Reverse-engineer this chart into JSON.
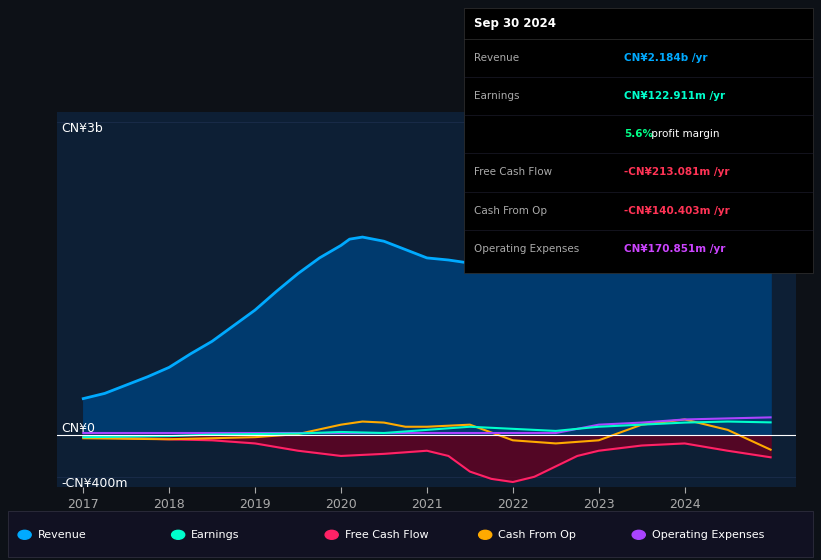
{
  "bg_color": "#0d1117",
  "plot_bg_color": "#0d1f35",
  "ylabel_top": "CN¥3b",
  "ylabel_zero": "CN¥0",
  "ylabel_neg": "-CN¥400m",
  "ylim": [
    -500000000,
    3100000000
  ],
  "xlim": [
    2016.7,
    2025.3
  ],
  "xticks": [
    2017,
    2018,
    2019,
    2020,
    2021,
    2022,
    2023,
    2024
  ],
  "grid_color": "#1e3050",
  "zero_line_color": "#ffffff",
  "series": {
    "revenue": {
      "color": "#00aaff",
      "fill_color": "#003a6e",
      "label": "Revenue",
      "x": [
        2017.0,
        2017.25,
        2017.5,
        2017.75,
        2018.0,
        2018.25,
        2018.5,
        2018.75,
        2019.0,
        2019.25,
        2019.5,
        2019.75,
        2020.0,
        2020.1,
        2020.25,
        2020.5,
        2020.75,
        2021.0,
        2021.25,
        2021.5,
        2021.75,
        2022.0,
        2022.25,
        2022.5,
        2022.75,
        2023.0,
        2023.25,
        2023.5,
        2023.75,
        2024.0,
        2024.25,
        2024.5,
        2024.75,
        2025.0
      ],
      "y": [
        350000000,
        400000000,
        480000000,
        560000000,
        650000000,
        780000000,
        900000000,
        1050000000,
        1200000000,
        1380000000,
        1550000000,
        1700000000,
        1820000000,
        1880000000,
        1900000000,
        1860000000,
        1780000000,
        1700000000,
        1680000000,
        1650000000,
        1680000000,
        1700000000,
        1750000000,
        1850000000,
        1950000000,
        2100000000,
        2400000000,
        2700000000,
        2750000000,
        2850000000,
        2780000000,
        2700000000,
        2600000000,
        2184000000
      ]
    },
    "earnings": {
      "color": "#00ffcc",
      "label": "Earnings",
      "x": [
        2017.0,
        2017.5,
        2018.0,
        2018.5,
        2019.0,
        2019.5,
        2020.0,
        2020.5,
        2021.0,
        2021.5,
        2022.0,
        2022.5,
        2023.0,
        2023.5,
        2024.0,
        2024.5,
        2025.0
      ],
      "y": [
        -20000000,
        -15000000,
        -10000000,
        5000000,
        10000000,
        15000000,
        30000000,
        20000000,
        50000000,
        80000000,
        60000000,
        40000000,
        80000000,
        100000000,
        120000000,
        130000000,
        122000000
      ]
    },
    "free_cash_flow": {
      "color": "#ff2266",
      "fill_color": "#660022",
      "label": "Free Cash Flow",
      "x": [
        2017.0,
        2017.5,
        2018.0,
        2018.5,
        2019.0,
        2019.5,
        2020.0,
        2020.5,
        2021.0,
        2021.25,
        2021.5,
        2021.75,
        2022.0,
        2022.25,
        2022.5,
        2022.75,
        2023.0,
        2023.5,
        2024.0,
        2024.5,
        2025.0
      ],
      "y": [
        -20000000,
        -30000000,
        -40000000,
        -50000000,
        -80000000,
        -150000000,
        -200000000,
        -180000000,
        -150000000,
        -200000000,
        -350000000,
        -420000000,
        -450000000,
        -400000000,
        -300000000,
        -200000000,
        -150000000,
        -100000000,
        -80000000,
        -150000000,
        -213000000
      ]
    },
    "cash_from_op": {
      "color": "#ffaa00",
      "label": "Cash From Op",
      "x": [
        2017.0,
        2017.5,
        2018.0,
        2018.5,
        2019.0,
        2019.5,
        2020.0,
        2020.25,
        2020.5,
        2020.75,
        2021.0,
        2021.5,
        2022.0,
        2022.5,
        2023.0,
        2023.5,
        2024.0,
        2024.5,
        2025.0
      ],
      "y": [
        -30000000,
        -35000000,
        -40000000,
        -30000000,
        -20000000,
        10000000,
        100000000,
        130000000,
        120000000,
        80000000,
        80000000,
        100000000,
        -50000000,
        -80000000,
        -50000000,
        100000000,
        150000000,
        50000000,
        -140000000
      ]
    },
    "operating_expenses": {
      "color": "#aa44ff",
      "label": "Operating Expenses",
      "x": [
        2017.0,
        2017.5,
        2018.0,
        2018.5,
        2019.0,
        2019.5,
        2020.0,
        2020.5,
        2021.0,
        2021.5,
        2022.0,
        2022.5,
        2023.0,
        2023.5,
        2024.0,
        2024.5,
        2025.0
      ],
      "y": [
        20000000,
        20000000,
        20000000,
        20000000,
        20000000,
        20000000,
        20000000,
        20000000,
        20000000,
        20000000,
        20000000,
        20000000,
        100000000,
        120000000,
        150000000,
        160000000,
        170000000
      ]
    }
  },
  "info_box": {
    "title": "Sep 30 2024",
    "rows": [
      {
        "label": "Revenue",
        "value": "CN¥2.184b /yr",
        "vc": "#00aaff",
        "extra": null
      },
      {
        "label": "Earnings",
        "value": "CN¥122.911m /yr",
        "vc": "#00ffcc",
        "extra": null
      },
      {
        "label": "",
        "value": "5.6%",
        "vc": "#00ff88",
        "extra": " profit margin",
        "ec": "#ffffff"
      },
      {
        "label": "Free Cash Flow",
        "value": "-CN¥213.081m /yr",
        "vc": "#ff3355",
        "extra": null
      },
      {
        "label": "Cash From Op",
        "value": "-CN¥140.403m /yr",
        "vc": "#ff3355",
        "extra": null
      },
      {
        "label": "Operating Expenses",
        "value": "CN¥170.851m /yr",
        "vc": "#cc44ff",
        "extra": null
      }
    ]
  },
  "legend": [
    {
      "label": "Revenue",
      "color": "#00aaff"
    },
    {
      "label": "Earnings",
      "color": "#00ffcc"
    },
    {
      "label": "Free Cash Flow",
      "color": "#ff2266"
    },
    {
      "label": "Cash From Op",
      "color": "#ffaa00"
    },
    {
      "label": "Operating Expenses",
      "color": "#aa44ff"
    }
  ]
}
